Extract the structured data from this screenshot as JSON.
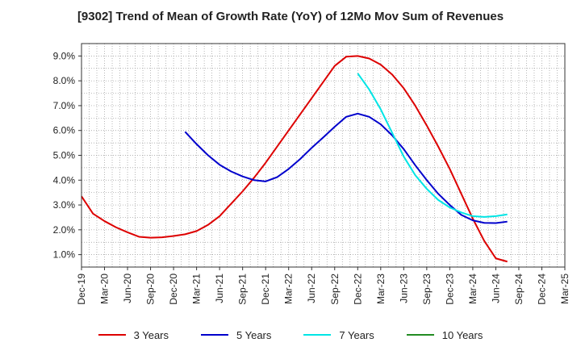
{
  "chart_data": {
    "type": "line",
    "title": "[9302]  Trend of Mean of Growth Rate (YoY) of 12Mo Mov Sum of Revenues",
    "xlabel": "",
    "ylabel": "",
    "x_ticks": [
      "Dec-19",
      "Mar-20",
      "Jun-20",
      "Sep-20",
      "Dec-20",
      "Mar-21",
      "Jun-21",
      "Sep-21",
      "Dec-21",
      "Mar-22",
      "Jun-22",
      "Sep-22",
      "Dec-22",
      "Mar-23",
      "Jun-23",
      "Sep-23",
      "Dec-23",
      "Mar-24",
      "Jun-24",
      "Sep-24",
      "Dec-24",
      "Mar-25"
    ],
    "y_ticks": [
      "1.0%",
      "2.0%",
      "3.0%",
      "4.0%",
      "5.0%",
      "6.0%",
      "7.0%",
      "8.0%",
      "9.0%"
    ],
    "ylim": [
      0.5,
      9.5
    ],
    "series": [
      {
        "name": "3 Years",
        "color": "#dd0000",
        "values": [
          [
            0,
            3.35
          ],
          [
            1,
            2.65
          ],
          [
            2,
            2.35
          ],
          [
            3,
            2.1
          ],
          [
            4,
            1.9
          ],
          [
            5,
            1.72
          ],
          [
            6,
            1.68
          ],
          [
            7,
            1.7
          ],
          [
            8,
            1.75
          ],
          [
            9,
            1.82
          ],
          [
            10,
            1.95
          ],
          [
            11,
            2.2
          ],
          [
            12,
            2.55
          ],
          [
            13,
            3.05
          ],
          [
            14,
            3.55
          ],
          [
            15,
            4.1
          ],
          [
            16,
            4.7
          ],
          [
            17,
            5.35
          ],
          [
            18,
            6.0
          ],
          [
            19,
            6.65
          ],
          [
            20,
            7.3
          ],
          [
            21,
            7.95
          ],
          [
            22,
            8.6
          ],
          [
            23,
            8.97
          ],
          [
            24,
            9.0
          ],
          [
            25,
            8.9
          ],
          [
            26,
            8.65
          ],
          [
            27,
            8.25
          ],
          [
            28,
            7.7
          ],
          [
            29,
            7.0
          ],
          [
            30,
            6.2
          ],
          [
            31,
            5.35
          ],
          [
            32,
            4.45
          ],
          [
            33,
            3.45
          ],
          [
            34,
            2.45
          ],
          [
            35,
            1.55
          ],
          [
            36,
            0.85
          ],
          [
            37,
            0.72
          ]
        ]
      },
      {
        "name": "5 Years",
        "color": "#0000cc",
        "values": [
          [
            9,
            5.95
          ],
          [
            10,
            5.45
          ],
          [
            11,
            5.0
          ],
          [
            12,
            4.62
          ],
          [
            13,
            4.35
          ],
          [
            14,
            4.15
          ],
          [
            15,
            4.0
          ],
          [
            16,
            3.95
          ],
          [
            17,
            4.12
          ],
          [
            18,
            4.45
          ],
          [
            19,
            4.85
          ],
          [
            20,
            5.3
          ],
          [
            21,
            5.72
          ],
          [
            22,
            6.15
          ],
          [
            23,
            6.55
          ],
          [
            24,
            6.68
          ],
          [
            25,
            6.55
          ],
          [
            26,
            6.25
          ],
          [
            27,
            5.8
          ],
          [
            28,
            5.25
          ],
          [
            29,
            4.6
          ],
          [
            30,
            4.0
          ],
          [
            31,
            3.45
          ],
          [
            32,
            3.0
          ],
          [
            33,
            2.6
          ],
          [
            34,
            2.38
          ],
          [
            35,
            2.28
          ],
          [
            36,
            2.27
          ],
          [
            37,
            2.33
          ]
        ]
      },
      {
        "name": "7 Years",
        "color": "#00e5e5",
        "values": [
          [
            24,
            8.3
          ],
          [
            25,
            7.65
          ],
          [
            26,
            6.85
          ],
          [
            27,
            5.9
          ],
          [
            28,
            4.95
          ],
          [
            29,
            4.2
          ],
          [
            30,
            3.65
          ],
          [
            31,
            3.2
          ],
          [
            32,
            2.9
          ],
          [
            33,
            2.7
          ],
          [
            34,
            2.55
          ],
          [
            35,
            2.52
          ],
          [
            36,
            2.55
          ],
          [
            37,
            2.62
          ]
        ]
      },
      {
        "name": "10 Years",
        "color": "#228b22",
        "values": []
      }
    ],
    "grid": true,
    "legend_position": "bottom"
  }
}
